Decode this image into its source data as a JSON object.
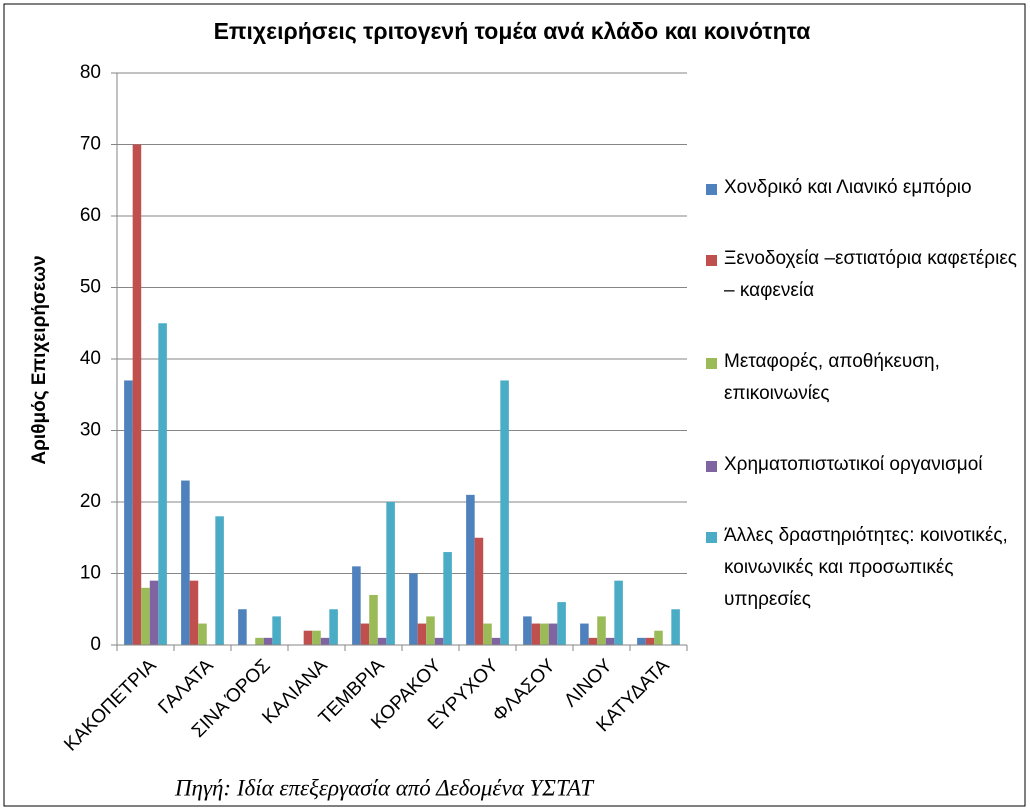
{
  "chart_data": {
    "type": "bar",
    "title": "Επιχειρήσεις τριτογενή τομέα ανά κλάδο και κοινότητα",
    "ylabel": "Αριθμός Επιχειρήσεων",
    "source": "Πηγή: Ιδία επεξεργασία από  Δεδομένα ΥΣΤΑΤ",
    "categories": [
      "ΚΑΚΟΠΕΤΡΙΑ",
      "ΓΑΛΑΤΑ",
      "ΣΙΝΑ ΌΡΟΣ",
      "ΚΑΛΙΑΝΑ",
      "ΤΕΜΒΡΙΑ",
      "ΚΟΡΑΚΟΥ",
      "ΕΥΡΥΧΟΥ",
      "ΦΛΑΣΟΥ",
      "ΛΙΝΟΥ",
      "ΚΑΤΥΔΑΤΑ"
    ],
    "series": [
      {
        "name": "Χονδρικό και Λιανικό εμπόριο",
        "color": "#4f81bd",
        "values": [
          37,
          23,
          5,
          0,
          11,
          10,
          21,
          4,
          3,
          1
        ]
      },
      {
        "name": "Ξενοδοχεία –εστιατόρια καφετέριες – καφενεία",
        "color": "#c0504d",
        "values": [
          70,
          9,
          0,
          2,
          3,
          3,
          15,
          3,
          1,
          1
        ]
      },
      {
        "name": "Μεταφορές, αποθήκευση, επικοινωνίες",
        "color": "#9bbb59",
        "values": [
          8,
          3,
          1,
          2,
          7,
          4,
          3,
          3,
          4,
          2
        ]
      },
      {
        "name": "Χρηματοπιστωτικοί οργανισμοί",
        "color": "#8064a2",
        "values": [
          9,
          0,
          1,
          1,
          1,
          1,
          1,
          3,
          1,
          0
        ]
      },
      {
        "name": "Άλλες δραστηριότητες: κοινοτικές, κοινωνικές και προσωπικές υπηρεσίες",
        "color": "#4bacc6",
        "values": [
          45,
          18,
          4,
          5,
          20,
          13,
          37,
          6,
          9,
          5
        ]
      }
    ],
    "ylim": [
      0,
      80
    ],
    "yticks": [
      0,
      10,
      20,
      30,
      40,
      50,
      60,
      70,
      80
    ],
    "grid": true,
    "legend": "right"
  }
}
